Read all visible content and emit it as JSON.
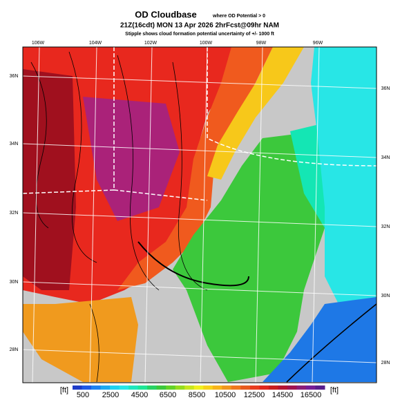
{
  "header": {
    "title": "OD Cloudbase",
    "title_note": "where OD Potential > 0",
    "subtitle": "21Z(16cdt) MON 13 Apr 2026 2hrFcst@09hr NAM",
    "note": "Stipple shows cloud formation potential uncertainty of +/- 1000 ft"
  },
  "map": {
    "lon_labels_top": [
      "106W",
      "104W",
      "102W",
      "100W",
      "98W",
      "96W"
    ],
    "lat_labels_left": [
      "36N",
      "34N",
      "32N",
      "30N",
      "28N"
    ],
    "lat_labels_right": [
      "36N",
      "34N",
      "32N",
      "30N",
      "28N"
    ]
  },
  "colorbar": {
    "unit_left": "[ft]",
    "unit_right": "[ft]",
    "labels": [
      500,
      2500,
      4500,
      6500,
      8500,
      10500,
      12500,
      14500,
      16500
    ]
  }
}
